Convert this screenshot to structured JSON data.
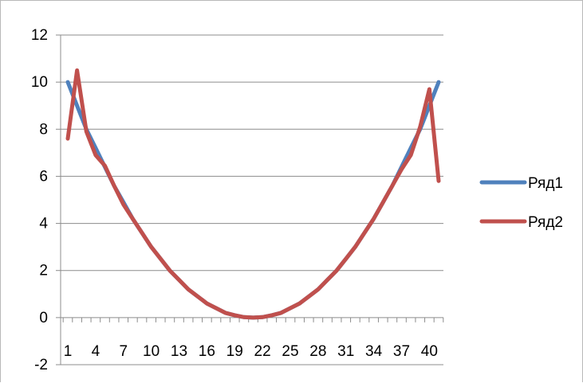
{
  "chart_data": {
    "type": "line",
    "title": "",
    "xlabel": "",
    "ylabel": "",
    "ylim": [
      -2,
      12
    ],
    "yticks": [
      -2,
      0,
      2,
      4,
      6,
      8,
      10,
      12
    ],
    "x": [
      1,
      2,
      3,
      4,
      5,
      6,
      7,
      8,
      9,
      10,
      11,
      12,
      13,
      14,
      15,
      16,
      17,
      18,
      19,
      20,
      21,
      22,
      23,
      24,
      25,
      26,
      27,
      28,
      29,
      30,
      31,
      32,
      33,
      34,
      35,
      36,
      37,
      38,
      39,
      40,
      41
    ],
    "xtick_labels": [
      "1",
      "4",
      "7",
      "10",
      "13",
      "16",
      "19",
      "22",
      "25",
      "28",
      "31",
      "34",
      "37",
      "40"
    ],
    "xtick_values": [
      1,
      4,
      7,
      10,
      13,
      16,
      19,
      22,
      25,
      28,
      31,
      34,
      37,
      40
    ],
    "grid": "horizontal",
    "legend_position": "right",
    "series": [
      {
        "name": "Ряд1",
        "color": "#4f81bd",
        "values": [
          10,
          9,
          8,
          7.2,
          6.4,
          5.6,
          4.9,
          4.2,
          3.6,
          3,
          2.5,
          2,
          1.6,
          1.2,
          0.9,
          0.6,
          0.4,
          0.2,
          0.1,
          0.02,
          0,
          0.02,
          0.1,
          0.2,
          0.4,
          0.6,
          0.9,
          1.2,
          1.6,
          2,
          2.5,
          3,
          3.6,
          4.2,
          4.9,
          5.6,
          6.4,
          7.2,
          8,
          9,
          10
        ]
      },
      {
        "name": "Ряд2",
        "color": "#c0504d",
        "values": [
          7.6,
          10.5,
          7.9,
          6.9,
          6.45,
          5.6,
          4.8,
          4.2,
          3.6,
          3,
          2.5,
          2,
          1.6,
          1.2,
          0.9,
          0.6,
          0.4,
          0.2,
          0.1,
          0.02,
          0,
          0.02,
          0.1,
          0.2,
          0.4,
          0.6,
          0.9,
          1.2,
          1.6,
          2,
          2.5,
          3,
          3.6,
          4.2,
          4.9,
          5.6,
          6.3,
          6.9,
          8.1,
          9.7,
          5.8
        ]
      }
    ]
  }
}
